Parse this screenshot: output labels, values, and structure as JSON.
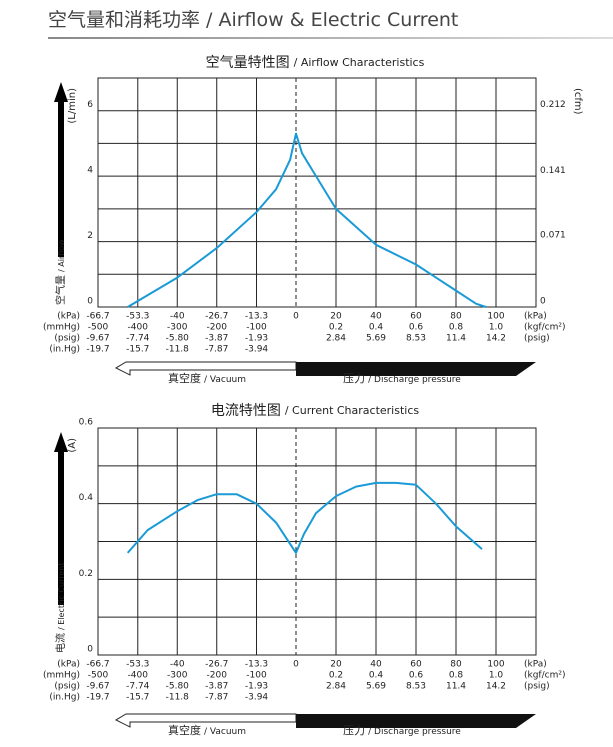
{
  "header": {
    "title_cn": "空气量和消耗功率",
    "title_en": "/ Airflow & Electric Current"
  },
  "chart_data": [
    {
      "type": "line",
      "title_cn": "空气量特性图",
      "title_en": "/ Airflow Characteristics",
      "y_label": "(L/min)",
      "y2_label": "(cfm)",
      "y_title_cn": "空气量",
      "y_title_en": "/ Airflow",
      "x_unit_left": "(kPa)",
      "x_unit_right": "(kPa)",
      "xlim": [
        -66.7,
        120
      ],
      "xticks": [
        -66.7,
        -53.3,
        -40,
        -26.7,
        -13.3,
        0,
        20,
        40,
        60,
        80,
        100
      ],
      "x_unit_rows": [
        {
          "left_unit": "(mmHg)",
          "right_unit": "(kgf/cm²)",
          "labels": [
            "-500",
            "-400",
            "-300",
            "-200",
            "-100",
            null,
            "0.2",
            "0.4",
            "0.6",
            "0.8",
            "1.0"
          ]
        },
        {
          "left_unit": "(psig)",
          "right_unit": "(psig)",
          "labels": [
            "-9.67",
            "-7.74",
            "-5.80",
            "-3.87",
            "-1.93",
            null,
            "2.84",
            "5.69",
            "8.53",
            "11.4",
            "14.2"
          ]
        },
        {
          "left_unit": "(in.Hg)",
          "labels": [
            "-19.7",
            "-15.7",
            "-11.8",
            "-7.87",
            "-3.94",
            null,
            null,
            null,
            null,
            null,
            null
          ]
        }
      ],
      "ylim": [
        0,
        7
      ],
      "yticks": [
        0,
        2,
        4,
        6
      ],
      "ygrid": [
        1,
        2,
        3,
        4,
        5,
        6
      ],
      "y2lim": [
        0,
        0.247
      ],
      "y2ticks": [
        0,
        0.071,
        0.141,
        0.212
      ],
      "color": "#1a9ad6",
      "x": [
        -56.7,
        -40,
        -26.7,
        -13.3,
        -6.7,
        -2,
        0,
        3,
        10,
        20,
        40,
        60,
        70,
        80,
        90,
        95
      ],
      "values": [
        0,
        0.9,
        1.8,
        2.9,
        3.6,
        4.5,
        5.3,
        4.7,
        4.0,
        3.0,
        1.9,
        1.3,
        0.9,
        0.5,
        0.1,
        0
      ],
      "vacuum_label_cn": "真空度",
      "vacuum_label_en": "/ Vacuum",
      "pressure_label_cn": "压力",
      "pressure_label_en": "/ Discharge pressure"
    },
    {
      "type": "line",
      "title_cn": "电流特性图",
      "title_en": "/ Current Characteristics",
      "y_label": "(A)",
      "y_title_cn": "电流",
      "y_title_en": "/ Electric Current",
      "x_unit_left": "(kPa)",
      "x_unit_right": "(kPa)",
      "xlim": [
        -66.7,
        120
      ],
      "xticks": [
        -66.7,
        -53.3,
        -40,
        -26.7,
        -13.3,
        0,
        20,
        40,
        60,
        80,
        100
      ],
      "x_unit_rows": [
        {
          "left_unit": "(mmHg)",
          "right_unit": "(kgf/cm²)",
          "labels": [
            "-500",
            "-400",
            "-300",
            "-200",
            "-100",
            null,
            "0.2",
            "0.4",
            "0.6",
            "0.8",
            "1.0"
          ]
        },
        {
          "left_unit": "(psig)",
          "right_unit": "(psig)",
          "labels": [
            "-9.67",
            "-7.74",
            "-5.80",
            "-3.87",
            "-1.93",
            null,
            "2.84",
            "5.69",
            "8.53",
            "11.4",
            "14.2"
          ]
        },
        {
          "left_unit": "(in.Hg)",
          "labels": [
            "-19.7",
            "-15.7",
            "-11.8",
            "-7.87",
            "-3.94",
            null,
            null,
            null,
            null,
            null,
            null
          ]
        }
      ],
      "ylim": [
        0,
        0.6
      ],
      "yticks": [
        0,
        0.2,
        0.4,
        0.6
      ],
      "ygrid": [
        0.1,
        0.2,
        0.3,
        0.4,
        0.5,
        0.6
      ],
      "color": "#1a9ad6",
      "x": [
        -56.7,
        -50,
        -40,
        -33,
        -26.7,
        -20,
        -13.3,
        -6.7,
        0,
        4,
        10,
        20,
        30,
        40,
        50,
        60,
        70,
        80,
        93
      ],
      "values": [
        0.27,
        0.33,
        0.38,
        0.41,
        0.425,
        0.425,
        0.4,
        0.35,
        0.27,
        0.32,
        0.375,
        0.42,
        0.445,
        0.455,
        0.455,
        0.45,
        0.4,
        0.34,
        0.28
      ],
      "vacuum_label_cn": "真空度",
      "vacuum_label_en": "/ Vacuum",
      "pressure_label_cn": "压力",
      "pressure_label_en": "/ Discharge pressure"
    }
  ]
}
